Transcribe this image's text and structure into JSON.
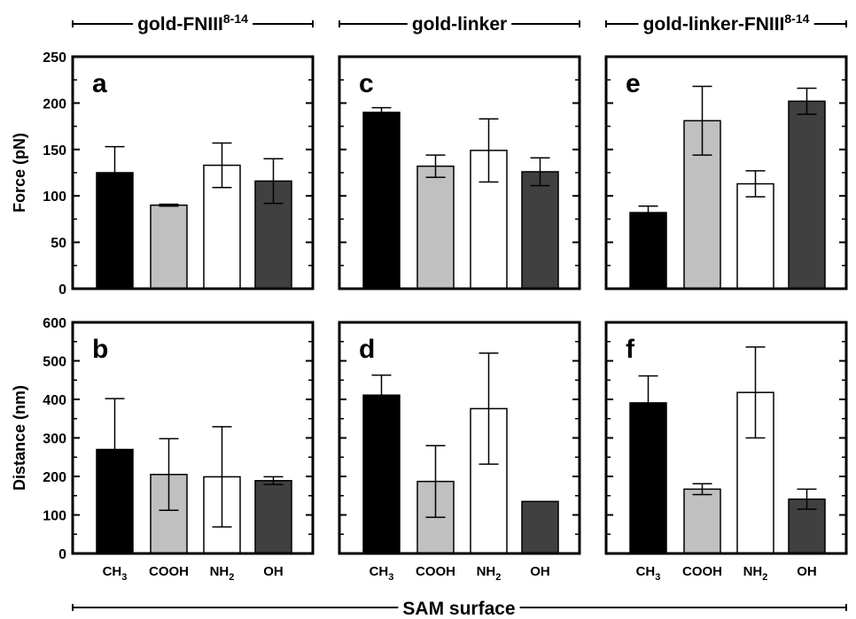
{
  "colors": {
    "CH3": "#000000",
    "COOH": "#c0c0c0",
    "NH2": "#ffffff",
    "OH": "#404040"
  },
  "chart_data": {
    "type": "bar",
    "xlabel": "SAM surface",
    "categories": [
      {
        "main": "CH",
        "sub": "3"
      },
      {
        "main": "COOH",
        "sub": ""
      },
      {
        "main": "NH",
        "sub": "2"
      },
      {
        "main": "OH",
        "sub": ""
      }
    ],
    "column_titles": [
      {
        "main": "gold-FNIII",
        "sup": "8-14"
      },
      {
        "main": "gold-linker",
        "sup": ""
      },
      {
        "main": "gold-linker-FNIII",
        "sup": "8-14"
      }
    ],
    "rows": [
      {
        "ylabel": "Force (pN)",
        "ylim": [
          0,
          250
        ],
        "ticks": [
          0,
          50,
          100,
          150,
          200,
          250
        ]
      },
      {
        "ylabel": "Distance (nm)",
        "ylim": [
          0,
          600
        ],
        "ticks": [
          0,
          100,
          200,
          300,
          400,
          500,
          600
        ]
      }
    ],
    "panels": [
      {
        "label": "a",
        "row": 0,
        "col": 0,
        "values": [
          125,
          90,
          133,
          116
        ],
        "errors": [
          28,
          1,
          24,
          24
        ]
      },
      {
        "label": "c",
        "row": 0,
        "col": 1,
        "values": [
          190,
          132,
          149,
          126
        ],
        "errors": [
          5,
          12,
          34,
          15
        ]
      },
      {
        "label": "e",
        "row": 0,
        "col": 2,
        "values": [
          82,
          181,
          113,
          202
        ],
        "errors": [
          7,
          37,
          14,
          14
        ]
      },
      {
        "label": "b",
        "row": 1,
        "col": 0,
        "values": [
          270,
          205,
          199,
          189
        ],
        "errors": [
          132,
          93,
          130,
          10
        ]
      },
      {
        "label": "d",
        "row": 1,
        "col": 1,
        "values": [
          411,
          187,
          376,
          135
        ],
        "errors": [
          52,
          93,
          144,
          0
        ]
      },
      {
        "label": "f",
        "row": 1,
        "col": 2,
        "values": [
          391,
          167,
          418,
          141
        ],
        "errors": [
          70,
          14,
          118,
          26
        ]
      }
    ]
  }
}
